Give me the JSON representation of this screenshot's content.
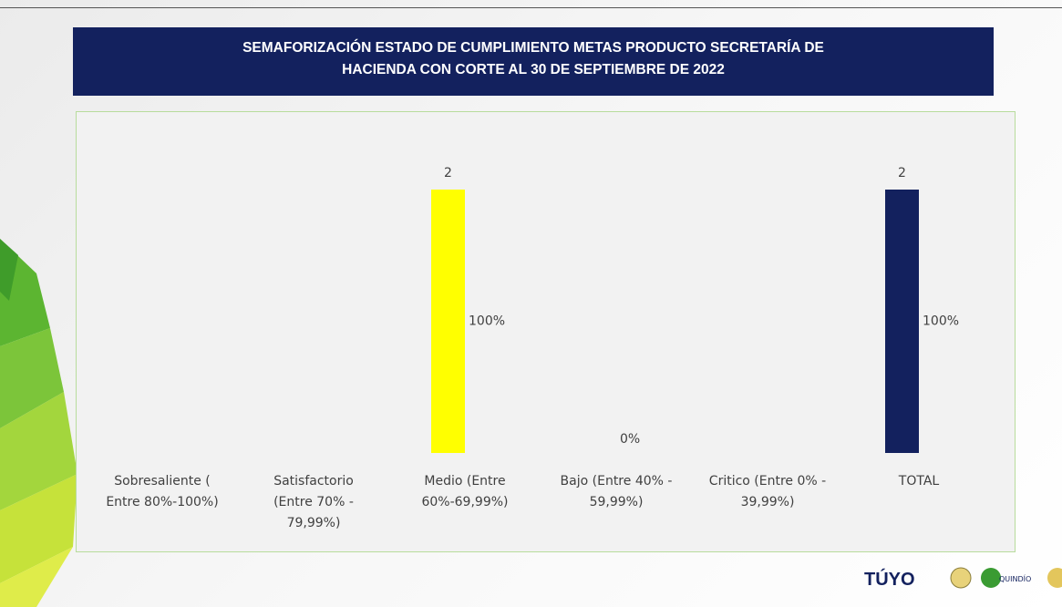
{
  "chart_data": {
    "type": "bar",
    "title": [
      "SEMAFORIZACIÓN  ESTADO DE CUMPLIMIENTO METAS PRODUCTO  SECRETARÍA DE",
      "HACIENDA CON CORTE AL 30 DE SEPTIEMBRE DE 2022"
    ],
    "categories": [
      [
        "Sobresaliente (",
        "Entre 80%-100%)"
      ],
      [
        "Satisfactorio",
        "(Entre 70% -",
        "79,99%)"
      ],
      [
        "Medio (Entre",
        "60%-69,99%)"
      ],
      [
        "Bajo (Entre 40% -",
        "59,99%)"
      ],
      [
        "Critico (Entre 0% -",
        "39,99%)"
      ],
      [
        "TOTAL"
      ]
    ],
    "values": [
      null,
      null,
      2,
      null,
      null,
      2
    ],
    "percentage_labels": [
      null,
      null,
      "100%",
      "0%",
      null,
      "100%"
    ],
    "colors": [
      null,
      null,
      "#ffff00",
      null,
      null,
      "#13215e"
    ]
  },
  "footer": {
    "logos": [
      "TÚYO",
      "QUINDÍO"
    ]
  }
}
